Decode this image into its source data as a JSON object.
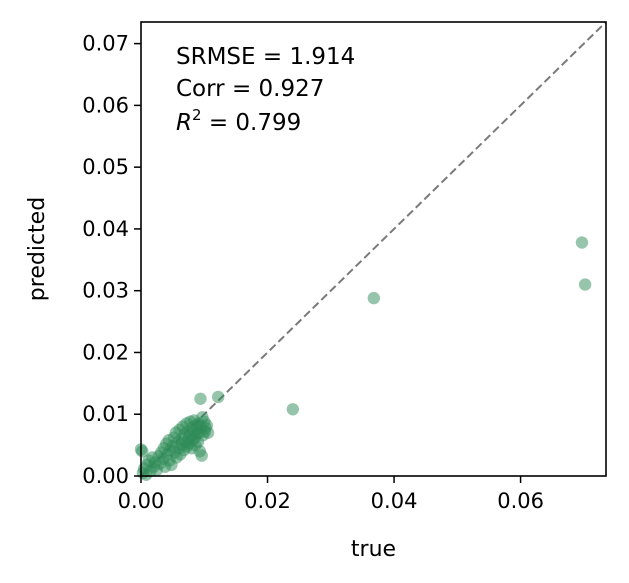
{
  "chart_data": {
    "type": "scatter",
    "xlabel": "true",
    "ylabel": "predicted",
    "xlim": [
      0,
      0.0735
    ],
    "ylim": [
      0,
      0.0735
    ],
    "x_ticks": [
      0.0,
      0.02,
      0.04,
      0.06
    ],
    "x_tick_labels": [
      "0.00",
      "0.02",
      "0.04",
      "0.06"
    ],
    "y_ticks": [
      0.0,
      0.01,
      0.02,
      0.03,
      0.04,
      0.05,
      0.06,
      0.07
    ],
    "y_tick_labels": [
      "0.00",
      "0.01",
      "0.02",
      "0.03",
      "0.04",
      "0.05",
      "0.06",
      "0.07"
    ],
    "grid": false,
    "point_color": "#2e8b57",
    "reference_line": {
      "style": "dashed",
      "color": "#7a7a7a",
      "from": [
        0,
        0
      ],
      "to": [
        0.0735,
        0.0735
      ]
    },
    "annotations": {
      "srmse_label": "SRMSE = 1.914",
      "corr_label": "Corr = 0.927",
      "r2_symbol": "R",
      "r2_exponent": "2",
      "r2_value": " = 0.799"
    },
    "points": [
      [
        0.0,
        0.0043
      ],
      [
        0.0002,
        0.004
      ],
      [
        0.0003,
        0.0005
      ],
      [
        0.0005,
        0.0012
      ],
      [
        0.0008,
        0.0002
      ],
      [
        0.001,
        0.0018
      ],
      [
        0.0012,
        0.0025
      ],
      [
        0.0015,
        0.0008
      ],
      [
        0.0018,
        0.003
      ],
      [
        0.002,
        0.0015
      ],
      [
        0.0022,
        0.0022
      ],
      [
        0.0025,
        0.001
      ],
      [
        0.0028,
        0.0032
      ],
      [
        0.003,
        0.002
      ],
      [
        0.0032,
        0.0038
      ],
      [
        0.0035,
        0.0028
      ],
      [
        0.0036,
        0.0045
      ],
      [
        0.0038,
        0.0015
      ],
      [
        0.004,
        0.0052
      ],
      [
        0.0042,
        0.0035
      ],
      [
        0.0044,
        0.0058
      ],
      [
        0.0045,
        0.0025
      ],
      [
        0.0046,
        0.0042
      ],
      [
        0.0048,
        0.0018
      ],
      [
        0.005,
        0.0048
      ],
      [
        0.0052,
        0.0062
      ],
      [
        0.0053,
        0.0038
      ],
      [
        0.0055,
        0.007
      ],
      [
        0.0056,
        0.003
      ],
      [
        0.0058,
        0.0055
      ],
      [
        0.006,
        0.0045
      ],
      [
        0.0061,
        0.0075
      ],
      [
        0.0062,
        0.0035
      ],
      [
        0.0064,
        0.006
      ],
      [
        0.0065,
        0.005
      ],
      [
        0.0066,
        0.008
      ],
      [
        0.0068,
        0.0042
      ],
      [
        0.0069,
        0.0068
      ],
      [
        0.007,
        0.0055
      ],
      [
        0.0072,
        0.0085
      ],
      [
        0.0073,
        0.0048
      ],
      [
        0.0074,
        0.0072
      ],
      [
        0.0075,
        0.006
      ],
      [
        0.0076,
        0.0052
      ],
      [
        0.0078,
        0.0088
      ],
      [
        0.0079,
        0.0065
      ],
      [
        0.008,
        0.0045
      ],
      [
        0.0081,
        0.0078
      ],
      [
        0.0082,
        0.0058
      ],
      [
        0.0083,
        0.007
      ],
      [
        0.0084,
        0.009
      ],
      [
        0.0085,
        0.0062
      ],
      [
        0.0086,
        0.005
      ],
      [
        0.0087,
        0.0082
      ],
      [
        0.0088,
        0.0068
      ],
      [
        0.0089,
        0.0076
      ],
      [
        0.009,
        0.0055
      ],
      [
        0.0091,
        0.0085
      ],
      [
        0.0092,
        0.007
      ],
      [
        0.0093,
        0.004
      ],
      [
        0.0094,
        0.0125
      ],
      [
        0.0095,
        0.008
      ],
      [
        0.0096,
        0.0033
      ],
      [
        0.0097,
        0.0095
      ],
      [
        0.0098,
        0.0066
      ],
      [
        0.01,
        0.0088
      ],
      [
        0.0101,
        0.0072
      ],
      [
        0.0102,
        0.0078
      ],
      [
        0.0104,
        0.0082
      ],
      [
        0.0106,
        0.007
      ],
      [
        0.0122,
        0.0128
      ],
      [
        0.024,
        0.0108
      ],
      [
        0.0368,
        0.0288
      ],
      [
        0.0697,
        0.0378
      ],
      [
        0.0702,
        0.031
      ]
    ]
  }
}
